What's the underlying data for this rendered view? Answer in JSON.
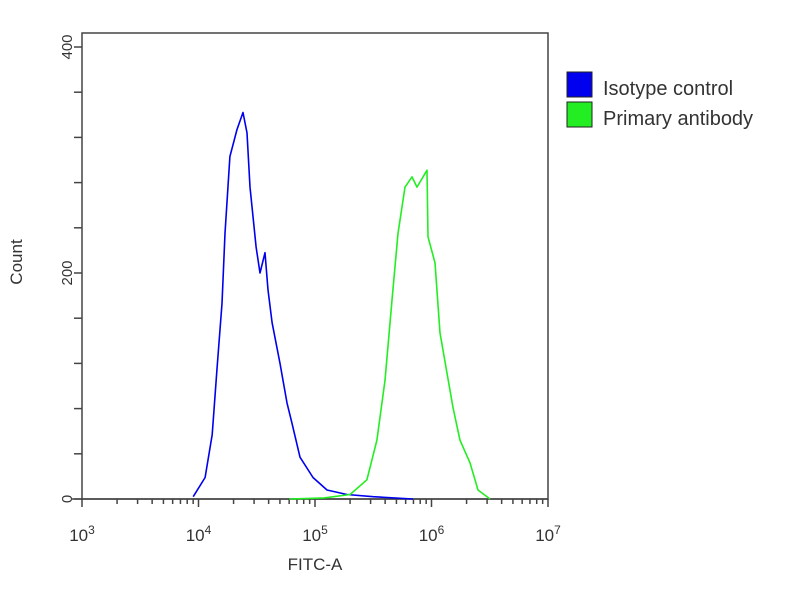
{
  "chart_data": {
    "type": "line",
    "title": "",
    "xlabel": "FITC-A",
    "ylabel": "Count",
    "xscale": "log",
    "xlim": [
      1000,
      10000000
    ],
    "ylim": [
      0,
      400
    ],
    "x_ticks": [
      {
        "base": "10",
        "exp": "3",
        "value": 1000
      },
      {
        "base": "10",
        "exp": "4",
        "value": 10000
      },
      {
        "base": "10",
        "exp": "5",
        "value": 100000
      },
      {
        "base": "10",
        "exp": "6",
        "value": 1000000
      },
      {
        "base": "10",
        "exp": "7",
        "value": 10000000
      }
    ],
    "y_ticks": [
      {
        "label": "0",
        "value": 0
      },
      {
        "label": "200",
        "value": 200
      },
      {
        "label": "400",
        "value": 400
      }
    ],
    "grid": false,
    "legend_position": "right-outside-top",
    "series": [
      {
        "name": "Isotype control",
        "color": "#0000ee",
        "points": [
          [
            9000,
            2
          ],
          [
            11400,
            19
          ],
          [
            13100,
            57
          ],
          [
            14400,
            114
          ],
          [
            15900,
            173
          ],
          [
            16900,
            235
          ],
          [
            18600,
            303
          ],
          [
            21400,
            327
          ],
          [
            24100,
            342
          ],
          [
            26100,
            324
          ],
          [
            27700,
            276
          ],
          [
            31200,
            223
          ],
          [
            33700,
            200
          ],
          [
            37200,
            218
          ],
          [
            39500,
            185
          ],
          [
            42800,
            156
          ],
          [
            50100,
            120
          ],
          [
            57500,
            85
          ],
          [
            63500,
            67
          ],
          [
            74300,
            37
          ],
          [
            96200,
            19
          ],
          [
            126800,
            8
          ],
          [
            188000,
            4
          ],
          [
            315000,
            2
          ],
          [
            694000,
            0
          ]
        ]
      },
      {
        "name": "Primary antibody",
        "color": "#22ee22",
        "points": [
          [
            60000,
            0
          ],
          [
            120000,
            1
          ],
          [
            200000,
            4
          ],
          [
            279000,
            17
          ],
          [
            340000,
            52
          ],
          [
            399000,
            105
          ],
          [
            458000,
            176
          ],
          [
            516000,
            235
          ],
          [
            592000,
            276
          ],
          [
            680000,
            285
          ],
          [
            751000,
            276
          ],
          [
            915000,
            291
          ],
          [
            934000,
            232
          ],
          [
            1071000,
            209
          ],
          [
            1183000,
            147
          ],
          [
            1530000,
            81
          ],
          [
            1758000,
            52
          ],
          [
            2140000,
            32
          ],
          [
            2505000,
            8
          ],
          [
            3177000,
            0
          ]
        ]
      }
    ]
  }
}
